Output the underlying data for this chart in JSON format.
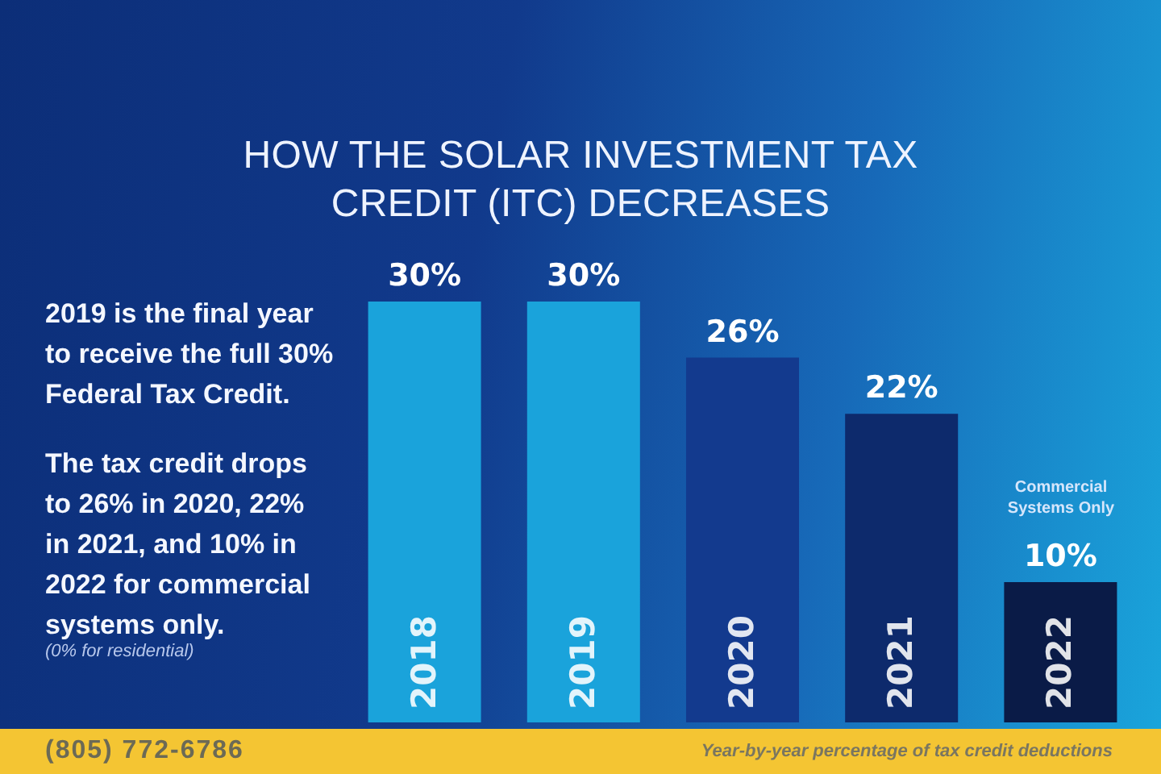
{
  "chart_data": {
    "type": "bar",
    "title": "HOW THE SOLAR INVESTMENT TAX CREDIT (ITC) DECREASES",
    "categories": [
      "2018",
      "2019",
      "2020",
      "2021",
      "2022"
    ],
    "values": [
      30,
      30,
      26,
      22,
      10
    ],
    "colors": [
      "#1aa3db",
      "#1aa3db",
      "#133a8e",
      "#0d2a6c",
      "#0a1b47"
    ],
    "value_labels": [
      "30%",
      "30%",
      "26%",
      "22%",
      "10%"
    ],
    "annotations": [
      "2019 is the final year to receive the full 30% Federal Tax Credit.",
      "The tax credit drops to 26% in 2020, 22% in 2021, and 10% in 2022 for commercial systems only.",
      "(0% for residential)",
      "Commercial Systems Only",
      "(805) 772-6786",
      "Year-by-year percentage of tax credit deductions"
    ]
  }
}
